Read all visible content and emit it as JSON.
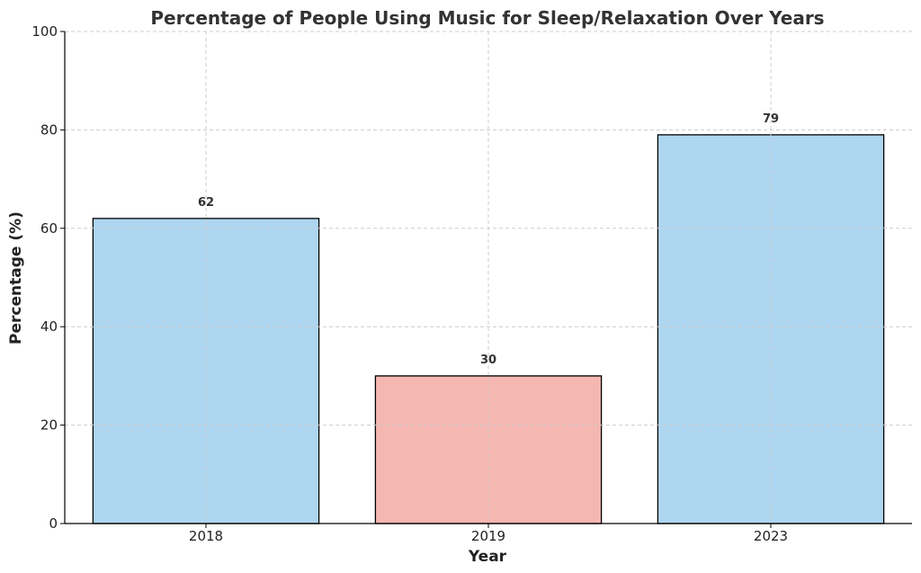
{
  "chart_data": {
    "type": "bar",
    "title": "Percentage of People Using Music for Sleep/Relaxation Over Years",
    "xlabel": "Year",
    "ylabel": "Percentage (%)",
    "categories": [
      "2018",
      "2019",
      "2023"
    ],
    "values": [
      62,
      30,
      79
    ],
    "data_labels": [
      "62",
      "30",
      "79"
    ],
    "colors": [
      "#aed6f1",
      "#f5b7b1",
      "#aed6f1"
    ],
    "ylim": [
      0,
      100
    ],
    "yticks": [
      0,
      20,
      40,
      60,
      80,
      100
    ],
    "grid": true
  }
}
